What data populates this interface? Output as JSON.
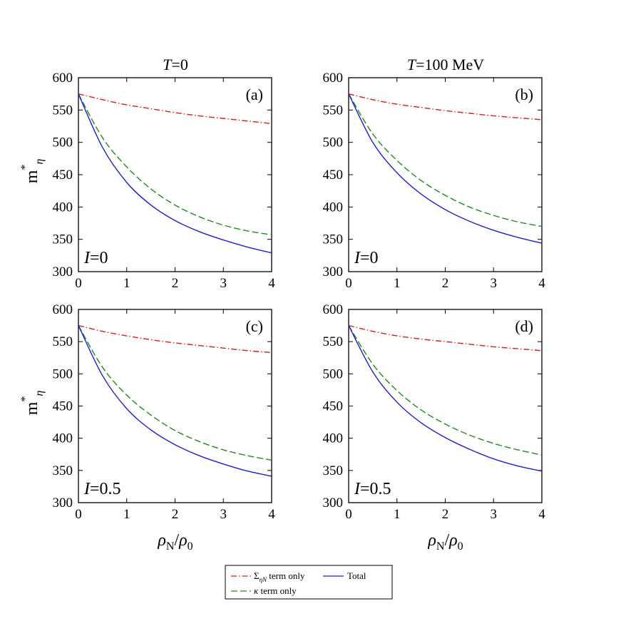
{
  "figure": {
    "columns": [
      {
        "title": "T=0"
      },
      {
        "title": "T=100 MeV"
      }
    ],
    "ylabel": "m*η",
    "xlabel": "ρN/ρ0"
  },
  "legend": {
    "entries": [
      {
        "key": "sigma",
        "label": "Σ_ηN term only",
        "color": "#e31a1c",
        "dash": "dashdot"
      },
      {
        "key": "total",
        "label": "Total",
        "color": "#1f1fd1",
        "dash": "solid"
      },
      {
        "key": "kappa",
        "label": "κ term only",
        "color": "#1e8c1e",
        "dash": "dashed"
      }
    ]
  },
  "chart_data": [
    {
      "type": "line",
      "panel": "(a)",
      "column_title": "T=0",
      "annotation": "I=0",
      "xlim": [
        0,
        4
      ],
      "ylim": [
        300,
        600
      ],
      "xticks": [
        0,
        1,
        2,
        3,
        4
      ],
      "yticks": [
        300,
        350,
        400,
        450,
        500,
        550,
        600
      ],
      "x": [
        0,
        0.5,
        1,
        1.5,
        2,
        2.5,
        3,
        3.5,
        4
      ],
      "series": [
        {
          "name": "Σ_ηN term only",
          "values": [
            575,
            566,
            558,
            552,
            546,
            541,
            537,
            533,
            529
          ]
        },
        {
          "name": "κ term only",
          "values": [
            575,
            507,
            462,
            428,
            403,
            385,
            372,
            363,
            357
          ]
        },
        {
          "name": "Total",
          "values": [
            575,
            492,
            438,
            403,
            379,
            362,
            349,
            338,
            329
          ]
        }
      ]
    },
    {
      "type": "line",
      "panel": "(b)",
      "column_title": "T=100 MeV",
      "annotation": "I=0",
      "xlim": [
        0,
        4
      ],
      "ylim": [
        300,
        600
      ],
      "xticks": [
        0,
        1,
        2,
        3,
        4
      ],
      "yticks": [
        300,
        350,
        400,
        450,
        500,
        550,
        600
      ],
      "x": [
        0,
        0.5,
        1,
        1.5,
        2,
        2.5,
        3,
        3.5,
        4
      ],
      "series": [
        {
          "name": "Σ_ηN term only",
          "values": [
            575,
            566,
            559,
            554,
            549,
            545,
            541,
            538,
            535
          ]
        },
        {
          "name": "κ term only",
          "values": [
            575,
            513,
            472,
            441,
            418,
            400,
            387,
            377,
            370
          ]
        },
        {
          "name": "Total",
          "values": [
            575,
            500,
            453,
            420,
            396,
            378,
            364,
            353,
            344
          ]
        }
      ]
    },
    {
      "type": "line",
      "panel": "(c)",
      "column_title": "T=0",
      "annotation": "I=0.5",
      "xlim": [
        0,
        4
      ],
      "ylim": [
        300,
        600
      ],
      "xticks": [
        0,
        1,
        2,
        3,
        4
      ],
      "yticks": [
        300,
        350,
        400,
        450,
        500,
        550,
        600
      ],
      "x": [
        0,
        0.5,
        1,
        1.5,
        2,
        2.5,
        3,
        3.5,
        4
      ],
      "series": [
        {
          "name": "Σ_ηN term only",
          "values": [
            575,
            566,
            559,
            553,
            548,
            544,
            540,
            536,
            533
          ]
        },
        {
          "name": "κ term only",
          "values": [
            575,
            510,
            467,
            436,
            412,
            395,
            382,
            373,
            366
          ]
        },
        {
          "name": "Total",
          "values": [
            575,
            497,
            446,
            413,
            390,
            373,
            360,
            349,
            341
          ]
        }
      ]
    },
    {
      "type": "line",
      "panel": "(d)",
      "column_title": "T=100 MeV",
      "annotation": "I=0.5",
      "xlim": [
        0,
        4
      ],
      "ylim": [
        300,
        600
      ],
      "xticks": [
        0,
        1,
        2,
        3,
        4
      ],
      "yticks": [
        300,
        350,
        400,
        450,
        500,
        550,
        600
      ],
      "x": [
        0,
        0.5,
        1,
        1.5,
        2,
        2.5,
        3,
        3.5,
        4
      ],
      "series": [
        {
          "name": "Σ_ηN term only",
          "values": [
            575,
            566,
            559,
            554,
            550,
            546,
            542,
            539,
            536
          ]
        },
        {
          "name": "κ term only",
          "values": [
            575,
            515,
            474,
            444,
            422,
            405,
            392,
            382,
            374
          ]
        },
        {
          "name": "Total",
          "values": [
            575,
            503,
            456,
            424,
            401,
            383,
            368,
            357,
            349
          ]
        }
      ]
    }
  ]
}
